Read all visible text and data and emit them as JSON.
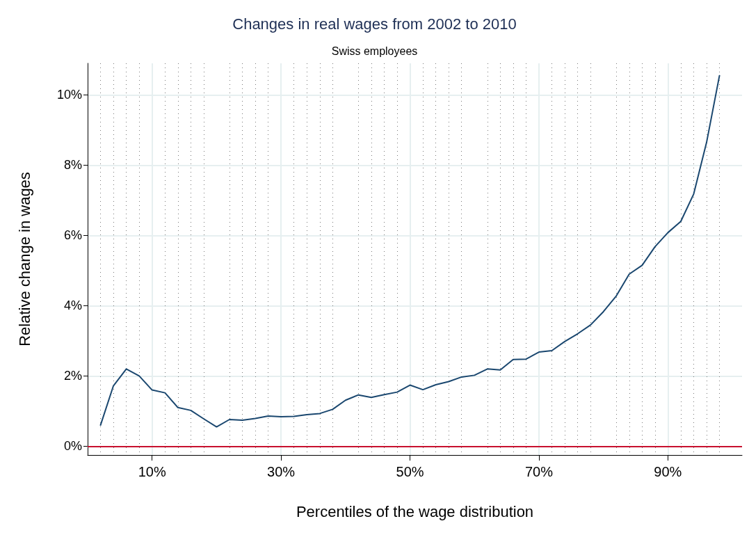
{
  "chart_data": {
    "type": "line",
    "title": "Changes in real wages from 2002 to 2010",
    "subtitle": "Swiss employees",
    "xlabel": "Percentiles of the wage distribution",
    "ylabel": "Relative change in wages",
    "x": [
      2,
      4,
      6,
      8,
      10,
      12,
      14,
      16,
      18,
      20,
      22,
      24,
      26,
      28,
      30,
      32,
      34,
      36,
      38,
      40,
      42,
      44,
      46,
      48,
      50,
      52,
      54,
      56,
      58,
      60,
      62,
      64,
      66,
      68,
      70,
      72,
      74,
      76,
      78,
      80,
      82,
      84,
      86,
      88,
      90,
      92,
      94,
      96,
      98
    ],
    "series": [
      {
        "color": "#1a476f",
        "values": [
          0.6,
          1.72,
          2.2,
          2.0,
          1.6,
          1.52,
          1.1,
          1.02,
          0.78,
          0.55,
          0.76,
          0.74,
          0.79,
          0.86,
          0.84,
          0.85,
          0.9,
          0.93,
          1.05,
          1.31,
          1.46,
          1.39,
          1.47,
          1.54,
          1.74,
          1.61,
          1.75,
          1.84,
          1.97,
          2.02,
          2.2,
          2.17,
          2.47,
          2.48,
          2.68,
          2.72,
          2.98,
          3.2,
          3.45,
          3.83,
          4.28,
          4.9,
          5.15,
          5.68,
          6.08,
          6.4,
          7.18,
          8.65,
          10.55
        ]
      }
    ],
    "xlim": [
      0,
      101.5
    ],
    "xticks": [
      {
        "value": 10,
        "label": "10%"
      },
      {
        "value": 30,
        "label": "30%"
      },
      {
        "value": 50,
        "label": "50%"
      },
      {
        "value": 70,
        "label": "70%"
      },
      {
        "value": 90,
        "label": "90%"
      }
    ],
    "ylim": [
      -0.25,
      10.9
    ],
    "yticks": [
      {
        "value": 0,
        "label": "0%"
      },
      {
        "value": 2,
        "label": "2%"
      },
      {
        "value": 4,
        "label": "4%"
      },
      {
        "value": 6,
        "label": "6%"
      },
      {
        "value": 8,
        "label": "8%"
      },
      {
        "value": 10,
        "label": "10%"
      }
    ],
    "ref_lines": [
      {
        "axis": "y",
        "value": 0,
        "color": "#c8102e"
      }
    ],
    "grid": true,
    "marker": "none",
    "line_style": "solid"
  }
}
